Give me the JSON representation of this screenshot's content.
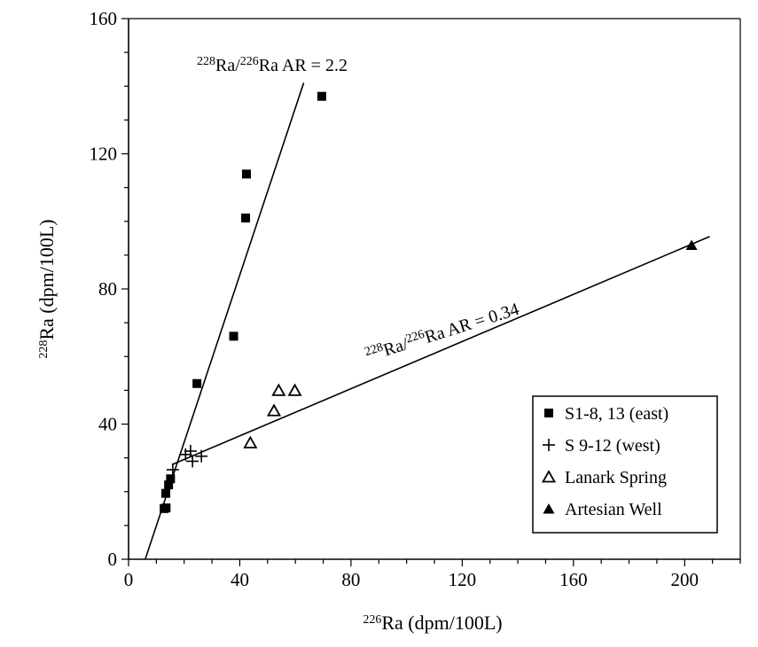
{
  "chart_data": {
    "type": "scatter",
    "xlabel": {
      "sup": "226",
      "text": "Ra (dpm/100L)"
    },
    "ylabel": {
      "sup": "228",
      "text": "Ra (dpm/100L)"
    },
    "xlim": [
      0,
      220
    ],
    "ylim": [
      0,
      160
    ],
    "xticks": [
      0,
      40,
      80,
      120,
      160,
      200
    ],
    "yticks": [
      0,
      40,
      80,
      120,
      160
    ],
    "legend_position": "lower-right",
    "series": [
      {
        "name": "S1-8, 13 (east)",
        "marker": "filled-square",
        "points": [
          [
            12.8,
            15
          ],
          [
            13.5,
            15.2
          ],
          [
            13.4,
            19.5
          ],
          [
            14.4,
            22
          ],
          [
            15.1,
            23.8
          ],
          [
            24.6,
            52
          ],
          [
            37.8,
            66
          ],
          [
            42.1,
            101
          ],
          [
            42.4,
            114
          ],
          [
            69.5,
            137
          ]
        ]
      },
      {
        "name": "S 9-12 (west)",
        "marker": "plus",
        "points": [
          [
            15.9,
            26.5
          ],
          [
            20.5,
            31
          ],
          [
            22.3,
            32
          ],
          [
            23,
            29
          ],
          [
            26.2,
            30.5
          ]
        ]
      },
      {
        "name": "Lanark Spring",
        "marker": "open-triangle",
        "points": [
          [
            43.8,
            34.5
          ],
          [
            52.3,
            44
          ],
          [
            54,
            50
          ],
          [
            59.8,
            50
          ]
        ]
      },
      {
        "name": "Artesian Well",
        "marker": "filled-triangle",
        "points": [
          [
            202.5,
            93
          ]
        ]
      }
    ],
    "lines": [
      {
        "name": "ar22",
        "sup1": "228",
        "mid": "Ra/",
        "sup2": "226",
        "text": "Ra AR = 2.2",
        "from": [
          6,
          0
        ],
        "to": [
          63,
          141
        ]
      },
      {
        "name": "ar034",
        "sup1": "228",
        "mid": "Ra/",
        "sup2": "226",
        "text": "Ra AR = 0.34",
        "from": [
          15.6,
          28
        ],
        "to": [
          209,
          95.5
        ]
      }
    ]
  }
}
